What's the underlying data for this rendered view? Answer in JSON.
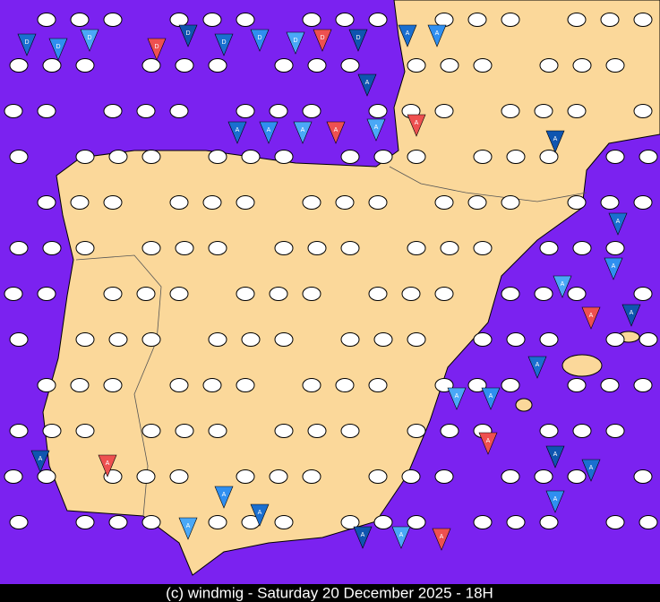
{
  "footer": "(c) windmig - Saturday 20 December 2025 - 18H",
  "markers": [
    "D",
    "D",
    "D",
    "D",
    "D",
    "D",
    "D",
    "D",
    "D",
    "D",
    "A",
    "A",
    "A",
    "A",
    "A",
    "A",
    "A",
    "A",
    "A",
    "A",
    "A",
    "A",
    "A",
    "A",
    "A",
    "A",
    "A",
    "A",
    "A",
    "A",
    "A",
    "A",
    "A",
    "A",
    "A",
    "A",
    "A",
    "A",
    "A",
    "A"
  ]
}
